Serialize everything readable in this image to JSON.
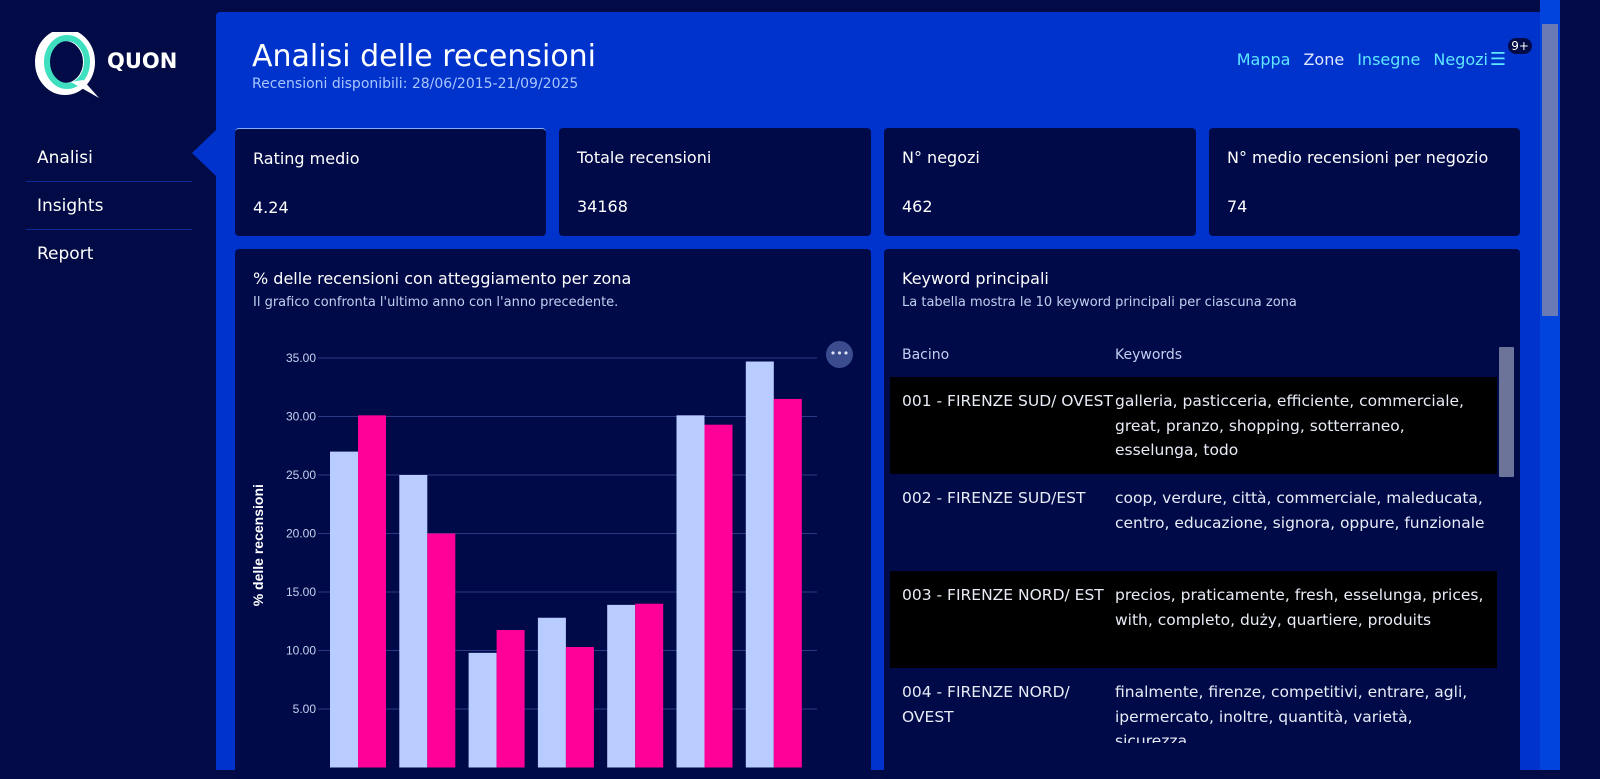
{
  "sidebar": {
    "brand": "QUON",
    "items": [
      {
        "label": "Analisi"
      },
      {
        "label": "Insights"
      },
      {
        "label": "Report"
      }
    ]
  },
  "header": {
    "title": "Analisi delle recensioni",
    "subtitle": "Recensioni disponibili: 28/06/2015-21/09/2025",
    "nav": [
      "Mappa",
      "Zone",
      "Insegne",
      "Negozi"
    ],
    "notification_badge": "9+",
    "menu_icon": "hamburger-icon"
  },
  "kpis": [
    {
      "label": "Rating medio",
      "value": "4.24"
    },
    {
      "label": "Totale recensioni",
      "value": "34168"
    },
    {
      "label": "N° negozi",
      "value": "462"
    },
    {
      "label": "N° medio recensioni per negozio",
      "value": "74"
    }
  ],
  "chart_card": {
    "title": "% delle recensioni con atteggiamento per zona",
    "description": "Il grafico confronta l'ultimo anno con l'anno precedente.",
    "menu_icon": "more-icon"
  },
  "chart_data": {
    "type": "bar",
    "ylabel": "% delle recensioni",
    "ylim": [
      0,
      35
    ],
    "yticks": [
      "5.00",
      "10.00",
      "15.00",
      "20.00",
      "25.00",
      "30.00",
      "35.00"
    ],
    "grid": true,
    "series": [
      {
        "color": "#b9ccff",
        "values": [
          27.0,
          25.0,
          9.8,
          12.8,
          13.9,
          30.1,
          34.7
        ]
      },
      {
        "color": "#ff0099",
        "values": [
          30.1,
          20.0,
          11.75,
          10.3,
          14.0,
          29.3,
          31.5
        ]
      }
    ]
  },
  "keywords": {
    "title": "Keyword principali",
    "description": "La tabella mostra le 10 keyword principali per ciascuna zona",
    "columns": [
      "Bacino",
      "Keywords"
    ],
    "rows": [
      {
        "bacino": "001 - FIRENZE SUD/ OVEST",
        "keywords": "galleria, pasticceria, efficiente, commerciale, great, pranzo, shopping, sotterraneo, esselunga, todo"
      },
      {
        "bacino": "002 - FIRENZE SUD/EST",
        "keywords": "coop, verdure, città, commerciale, maleducata, centro, educazione, signora, oppure, funzionale"
      },
      {
        "bacino": "003 - FIRENZE NORD/ EST",
        "keywords": "precios, praticamente, fresh, esselunga, prices, with, completo, duży, quartiere, produits"
      },
      {
        "bacino": "004 - FIRENZE NORD/ OVEST",
        "keywords": "finalmente, firenze, competitivi, entrare, agli, ipermercato, inoltre, quantità, varietà, sicurezza"
      }
    ]
  }
}
